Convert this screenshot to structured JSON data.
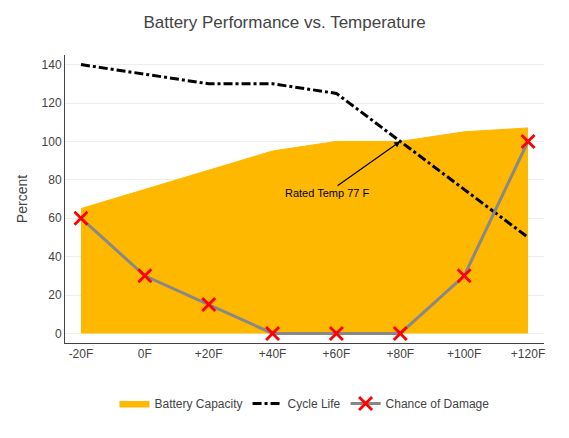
{
  "chart_data": {
    "type": "line",
    "title": "Battery Performance vs. Temperature",
    "ylabel": "Percent",
    "x": [
      -20,
      0,
      20,
      40,
      60,
      80,
      100,
      120
    ],
    "xlim": [
      -25,
      125
    ],
    "xticks": [
      {
        "value": -20,
        "label": "-20F"
      },
      {
        "value": 0,
        "label": "0F"
      },
      {
        "value": 20,
        "label": "+20F"
      },
      {
        "value": 40,
        "label": "+40F"
      },
      {
        "value": 60,
        "label": "+60F"
      },
      {
        "value": 80,
        "label": "+80F"
      },
      {
        "value": 100,
        "label": "+100F"
      },
      {
        "value": 120,
        "label": "+120F"
      }
    ],
    "ylim": [
      -5,
      145
    ],
    "yticks": [
      0,
      20,
      40,
      60,
      80,
      100,
      120,
      140
    ],
    "grid": "y",
    "legend": "bottom",
    "series": [
      {
        "name": "Battery Capacity",
        "type": "area",
        "color": "#FFB800",
        "values": [
          65,
          75,
          85,
          95,
          100,
          100,
          105,
          107
        ]
      },
      {
        "name": "Cycle Life",
        "type": "line",
        "color": "#000000",
        "line_style": "dashdot",
        "values": [
          140,
          135,
          130,
          130,
          125,
          100,
          75,
          50
        ]
      },
      {
        "name": "Chance of Damage",
        "type": "line",
        "color": "#888888",
        "line_style": "solid",
        "marker": "x",
        "colors": [
          "#FF0000",
          "#FF0000",
          "#FF0000",
          "#FF0000",
          "#FF0000",
          "#FF0000",
          "#FF0000",
          "#FF0000"
        ],
        "values": [
          60,
          30,
          15,
          0,
          0,
          0,
          30,
          100
        ]
      }
    ],
    "annotations": [
      {
        "text": "Rated Temp 77 F",
        "x": 80,
        "y": 100,
        "text_x": 57,
        "text_y": 73
      }
    ]
  }
}
